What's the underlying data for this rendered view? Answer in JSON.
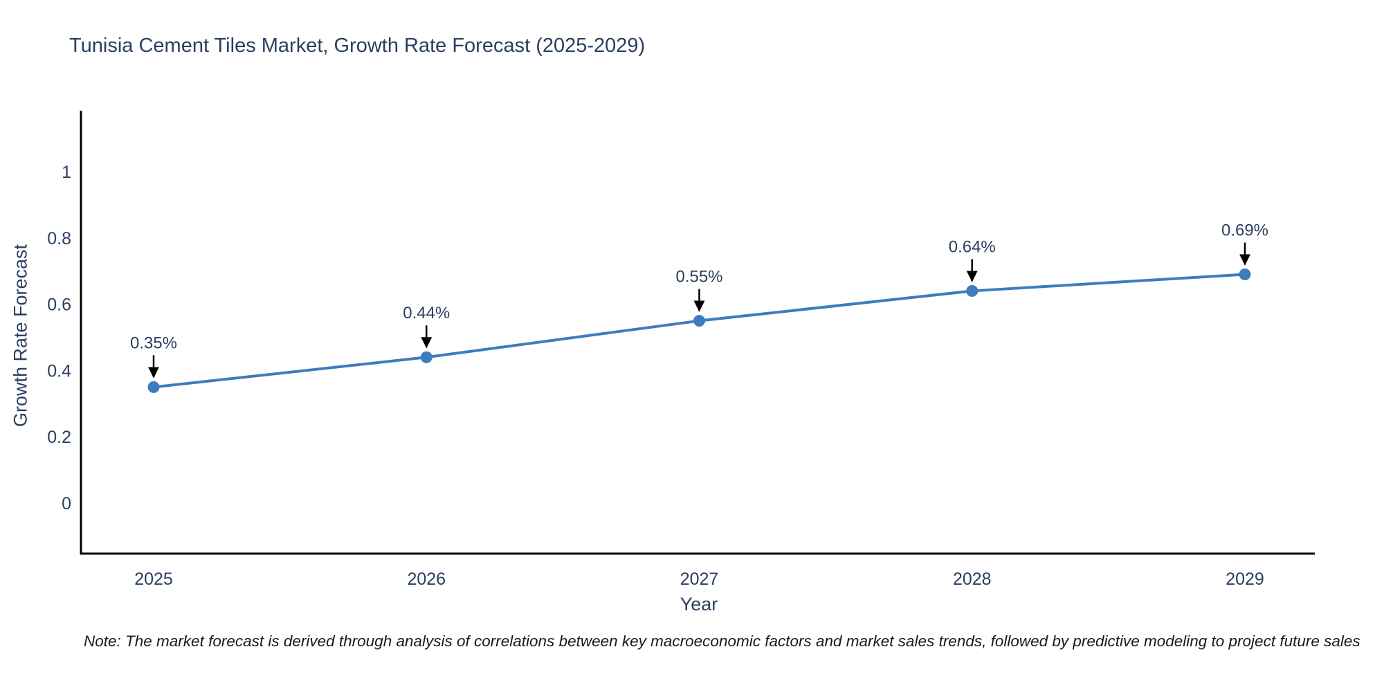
{
  "chart_data": {
    "type": "line",
    "title": "Tunisia Cement Tiles Market, Growth Rate Forecast (2025-2029)",
    "xlabel": "Year",
    "ylabel": "Growth Rate Forecast",
    "categories": [
      "2025",
      "2026",
      "2027",
      "2028",
      "2029"
    ],
    "series": [
      {
        "name": "Growth Rate Forecast",
        "values": [
          0.35,
          0.44,
          0.55,
          0.64,
          0.69
        ],
        "point_labels": [
          "0.35%",
          "0.44%",
          "0.55%",
          "0.64%",
          "0.69%"
        ]
      }
    ],
    "yticks": [
      0,
      0.2,
      0.4,
      0.6,
      0.8,
      1
    ],
    "ylim": [
      -0.15,
      1.18
    ],
    "grid": false,
    "legend_position": "none",
    "annotations_have_arrows": true,
    "colors": {
      "line": "#3d7dbd",
      "marker": "#3d7dbd",
      "axis_line": "#000000",
      "tick_text": "#2a3f5f",
      "annotation_text": "#2a3f5f",
      "annotation_arrow": "#000000"
    }
  },
  "note": {
    "text": "Note: The market forecast is derived through analysis of correlations between key macroeconomic factors and market sales trends, followed by predictive modeling to project future sales"
  }
}
